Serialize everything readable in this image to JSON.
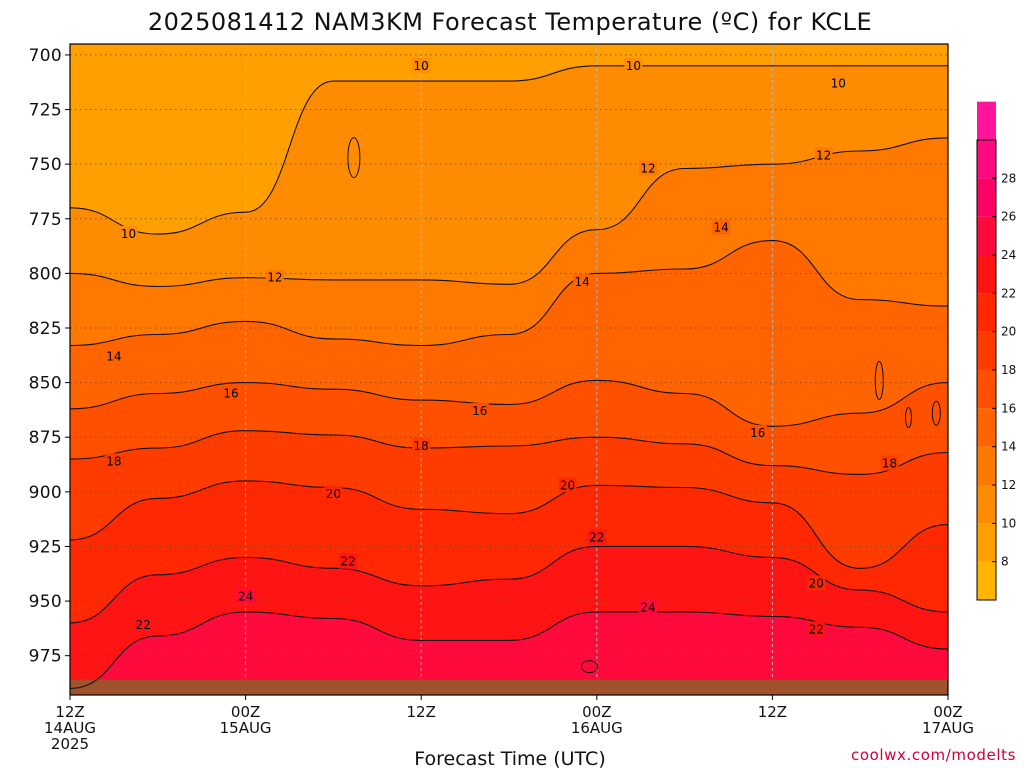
{
  "chart_data": {
    "type": "contour",
    "title": "2025081412 NAM3KM Forecast Temperature (ºC) for KCLE",
    "xlabel": "Forecast Time (UTC)",
    "ylabel": "",
    "credit": "coolwx.com/modelts",
    "x_ticks": [
      {
        "hour": 0,
        "lines": [
          "12Z",
          "14AUG",
          "2025"
        ]
      },
      {
        "hour": 12,
        "lines": [
          "00Z",
          "15AUG"
        ]
      },
      {
        "hour": 24,
        "lines": [
          "12Z"
        ]
      },
      {
        "hour": 36,
        "lines": [
          "00Z",
          "16AUG"
        ]
      },
      {
        "hour": 48,
        "lines": [
          "12Z"
        ]
      },
      {
        "hour": 60,
        "lines": [
          "00Z",
          "17AUG"
        ]
      }
    ],
    "xlim": [
      0,
      60
    ],
    "ylim": [
      993,
      695
    ],
    "y_ticks": [
      700,
      725,
      750,
      775,
      800,
      825,
      850,
      875,
      900,
      925,
      950,
      975
    ],
    "surface_pressure": 986,
    "colorbar": {
      "min": 6,
      "max": 30,
      "ticks": [
        8,
        10,
        12,
        14,
        16,
        18,
        20,
        22,
        24,
        26,
        28
      ],
      "colors": [
        "#ffb400",
        "#ffa000",
        "#ff8c00",
        "#ff7800",
        "#ff6400",
        "#ff5000",
        "#ff3c00",
        "#ff2800",
        "#ff1414",
        "#ff0a3c",
        "#ff0064",
        "#ff0a82",
        "#ff149b"
      ]
    },
    "grid": "dotted",
    "x_hours": [
      0,
      6,
      12,
      18,
      24,
      30,
      36,
      42,
      48,
      54,
      60
    ],
    "isotherms": [
      {
        "level": 10,
        "p": [
          770,
          782,
          772,
          712,
          712,
          712,
          705,
          705,
          705,
          705,
          705
        ]
      },
      {
        "level": 12,
        "p": [
          800,
          806,
          802,
          803,
          803,
          805,
          780,
          752,
          750,
          744,
          738
        ]
      },
      {
        "level": 14,
        "p": [
          833,
          828,
          822,
          830,
          833,
          828,
          800,
          798,
          785,
          812,
          815
        ]
      },
      {
        "level": 16,
        "p": [
          862,
          855,
          850,
          853,
          858,
          860,
          849,
          855,
          870,
          864,
          850
        ]
      },
      {
        "level": 18,
        "p": [
          885,
          880,
          872,
          874,
          880,
          879,
          875,
          878,
          888,
          892,
          882
        ]
      },
      {
        "level": 20,
        "p": [
          922,
          903,
          895,
          898,
          908,
          910,
          897,
          898,
          905,
          935,
          915
        ]
      },
      {
        "level": 22,
        "p": [
          960,
          938,
          930,
          935,
          943,
          940,
          925,
          925,
          930,
          945,
          955
        ]
      },
      {
        "level": 24,
        "p": [
          990,
          966,
          955,
          958,
          968,
          968,
          955,
          955,
          957,
          962,
          972
        ]
      }
    ],
    "contour_labels": [
      {
        "level": 10,
        "hour": 4,
        "p": 782
      },
      {
        "level": 10,
        "hour": 24,
        "p": 705
      },
      {
        "level": 10,
        "hour": 38.5,
        "p": 705
      },
      {
        "level": 10,
        "hour": 52.5,
        "p": 713
      },
      {
        "level": 12,
        "hour": 14,
        "p": 802
      },
      {
        "level": 12,
        "hour": 39.5,
        "p": 752
      },
      {
        "level": 12,
        "hour": 51.5,
        "p": 746
      },
      {
        "level": 14,
        "hour": 3,
        "p": 838
      },
      {
        "level": 14,
        "hour": 35,
        "p": 804
      },
      {
        "level": 14,
        "hour": 44.5,
        "p": 779
      },
      {
        "level": 16,
        "hour": 11,
        "p": 855
      },
      {
        "level": 16,
        "hour": 28,
        "p": 863
      },
      {
        "level": 16,
        "hour": 47,
        "p": 873
      },
      {
        "level": 18,
        "hour": 3,
        "p": 886
      },
      {
        "level": 18,
        "hour": 24,
        "p": 879
      },
      {
        "level": 18,
        "hour": 56,
        "p": 887
      },
      {
        "level": 20,
        "hour": 18,
        "p": 901
      },
      {
        "level": 20,
        "hour": 34,
        "p": 897
      },
      {
        "level": 20,
        "hour": 51,
        "p": 942
      },
      {
        "level": 22,
        "hour": 19,
        "p": 932
      },
      {
        "level": 22,
        "hour": 36,
        "p": 921
      },
      {
        "level": 22,
        "hour": 5,
        "p": 961
      },
      {
        "level": 22,
        "hour": 51,
        "p": 963
      },
      {
        "level": 24,
        "hour": 12,
        "p": 948
      },
      {
        "level": 24,
        "hour": 39.5,
        "p": 953
      }
    ]
  }
}
